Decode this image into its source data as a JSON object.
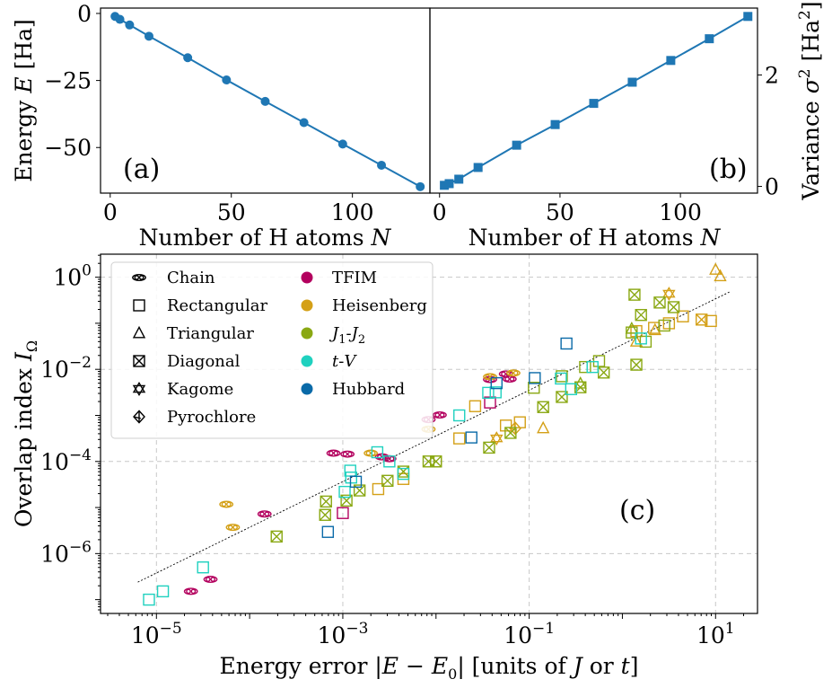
{
  "colors": {
    "line": "#1f77b4",
    "fit": "#000000",
    "TFIM": "#b3005e",
    "Heisenberg": "#d4a017",
    "J1-J2": "#8aa813",
    "t-V": "#1fd1bf",
    "Hubbard": "#0a6aa8",
    "legend_edge": "#cfcfcf"
  },
  "chart_data": [
    {
      "id": "a",
      "type": "line",
      "panel_label": "(a)",
      "xlabel": "Number of H atoms N",
      "ylabel": "Energy E [Ha]",
      "xlim": [
        -4,
        132
      ],
      "ylim": [
        -67,
        2
      ],
      "xticks": [
        "0",
        "50",
        "100"
      ],
      "xtick_values": [
        0,
        50,
        100
      ],
      "yticks": [
        "0",
        "−25",
        "−50"
      ],
      "ytick_values": [
        0,
        -25,
        -50
      ],
      "marker": "circle",
      "x": [
        2,
        4,
        8,
        16,
        32,
        48,
        64,
        80,
        96,
        112,
        128
      ],
      "y": [
        -1.1,
        -2.2,
        -4.3,
        -8.5,
        -16.5,
        -24.8,
        -32.8,
        -40.7,
        -48.7,
        -56.6,
        -64.6
      ]
    },
    {
      "id": "b",
      "type": "line",
      "panel_label": "(b)",
      "xlabel": "Number of H atoms N",
      "ylabel": "Variance σ² [Ha²]",
      "xlim": [
        -4,
        132
      ],
      "ylim": [
        -0.12,
        3.2
      ],
      "xticks": [
        "0",
        "50",
        "100"
      ],
      "xtick_values": [
        0,
        50,
        100
      ],
      "yticks": [
        "0",
        "2"
      ],
      "ytick_values": [
        0,
        2
      ],
      "marker": "square",
      "x": [
        2,
        4,
        8,
        16,
        32,
        48,
        64,
        80,
        96,
        112,
        128
      ],
      "y": [
        0.02,
        0.05,
        0.13,
        0.34,
        0.74,
        1.11,
        1.49,
        1.87,
        2.26,
        2.65,
        3.05
      ]
    },
    {
      "id": "c",
      "type": "scatter",
      "scale": "log-log",
      "panel_label": "(c)",
      "xlabel": "Energy error |E − E0| [units of J or t]",
      "ylabel": "Overlap index IΩ",
      "xlim_log10": [
        -5.6,
        1.45
      ],
      "ylim_log10": [
        -7.3,
        0.5
      ],
      "xticks": [
        "10−5",
        "10−3",
        "10−1",
        "101"
      ],
      "xtick_log10": [
        -5,
        -3,
        -1,
        1
      ],
      "yticks": [
        "100",
        "10−2",
        "10−4",
        "10−6"
      ],
      "ytick_log10": [
        0,
        -2,
        -4,
        -6
      ],
      "fit_log10": {
        "x": [
          -5.2,
          1.15
        ],
        "y": [
          -6.62,
          -0.32
        ]
      },
      "legend_shapes": [
        "Chain",
        "Rectangular",
        "Triangular",
        "Diagonal",
        "Kagome",
        "Pyrochlore"
      ],
      "legend_models": [
        "TFIM",
        "Heisenberg",
        "J1-J2",
        "t-V",
        "Hubbard"
      ],
      "series": [
        {
          "model": "TFIM",
          "shape": "Chain",
          "x": [
            -4.63,
            -4.42,
            -3.84,
            -3.1,
            -2.95,
            -2.58,
            -2.5,
            -2.08,
            -1.96,
            -1.42,
            -1.25,
            -1.21
          ],
          "y": [
            -6.82,
            -6.56,
            -5.14,
            -3.82,
            -3.84,
            -3.9,
            -3.94,
            -3.09,
            -2.99,
            -2.22,
            -2.1,
            -2.21
          ]
        },
        {
          "model": "TFIM",
          "shape": "Rectangular",
          "x": [
            -3.0,
            -1.42
          ],
          "y": [
            -5.12,
            -2.72
          ]
        },
        {
          "model": "Heisenberg",
          "shape": "Chain",
          "x": [
            -4.25,
            -4.18,
            -2.7,
            -2.08,
            -1.42,
            -1.17
          ],
          "y": [
            -4.93,
            -5.43,
            -3.82,
            -3.3,
            -2.16,
            -2.08
          ]
        },
        {
          "model": "Heisenberg",
          "shape": "Rectangular",
          "x": [
            -2.62,
            -2.35,
            -2.0,
            -1.75,
            -1.58,
            -1.25,
            -1.1,
            0.15,
            0.34,
            0.5,
            0.65,
            0.95
          ],
          "y": [
            -4.6,
            -4.38,
            -4.0,
            -3.5,
            -2.8,
            -3.22,
            -3.15,
            -1.17,
            -1.1,
            -1.0,
            -0.85,
            -0.95
          ]
        },
        {
          "model": "Heisenberg",
          "shape": "Triangular",
          "x": [
            1.0,
            1.05,
            0.35,
            0.15,
            -0.85
          ],
          "y": [
            0.16,
            0.02,
            -1.15,
            -1.4,
            -3.28
          ]
        },
        {
          "model": "Heisenberg",
          "shape": "Kagome",
          "x": [
            0.5,
            -1.35
          ],
          "y": [
            -0.36,
            -3.5
          ]
        },
        {
          "model": "Heisenberg",
          "shape": "Diagonal",
          "x": [
            0.85
          ],
          "y": [
            -0.92
          ]
        },
        {
          "model": "Heisenberg",
          "shape": "Pyrochlore",
          "x": [
            -1.15
          ],
          "y": [
            -3.28
          ]
        },
        {
          "model": "J1-J2",
          "shape": "Diagonal",
          "x": [
            -3.71,
            -3.19,
            -3.18,
            -2.96,
            -2.82,
            -2.52,
            -2.35,
            -2.08,
            -2.0,
            -1.43,
            -1.2,
            -0.85,
            -0.65,
            -0.45,
            -0.2,
            0.15,
            0.13,
            0.2,
            0.4,
            0.55
          ],
          "y": [
            -5.63,
            -5.16,
            -4.87,
            -4.85,
            -4.63,
            -4.42,
            -4.22,
            -4.0,
            -4.0,
            -3.7,
            -3.38,
            -2.82,
            -2.6,
            -2.39,
            -2.07,
            -1.9,
            -0.38,
            -0.82,
            -0.55,
            -0.65
          ]
        },
        {
          "model": "J1-J2",
          "shape": "Rectangular",
          "x": [
            -0.95,
            -0.65,
            -0.4,
            -0.25,
            0.1,
            0.25,
            0.45
          ],
          "y": [
            -2.4,
            -2.15,
            -1.95,
            -1.82,
            -1.2,
            -1.4,
            -1.05
          ]
        },
        {
          "model": "J1-J2",
          "shape": "Triangular",
          "x": [
            -0.45,
            0.1
          ],
          "y": [
            -2.31,
            -1.12
          ]
        },
        {
          "model": "t-V",
          "shape": "Rectangular",
          "x": [
            -5.08,
            -4.93,
            -4.5,
            -2.98,
            -2.92,
            -2.91,
            -2.63,
            -2.5,
            -2.35,
            -1.75,
            -1.44,
            -1.36,
            -0.66,
            -0.55,
            -0.32,
            0.2
          ],
          "y": [
            -7.0,
            -6.82,
            -6.3,
            -4.66,
            -4.2,
            -4.35,
            -3.8,
            -4.0,
            -4.27,
            -3.0,
            -2.51,
            -2.5,
            -2.2,
            -2.43,
            -1.95,
            -1.33
          ]
        },
        {
          "model": "Hubbard",
          "shape": "Rectangular",
          "x": [
            -3.16,
            -1.62,
            -2.86,
            -1.35,
            -0.94,
            -0.6
          ],
          "y": [
            -5.53,
            -3.48,
            -4.44,
            -2.3,
            -2.19,
            -1.44
          ]
        }
      ]
    }
  ],
  "labels": {
    "a_panel": "(a)",
    "b_panel": "(b)",
    "c_panel": "(c)",
    "a_xlabel": "Number of H atoms N",
    "a_ylabel": "Energy E [Ha]",
    "b_xlabel": "Number of H atoms N",
    "b_ylabel": "Variance σ² [Ha²]",
    "c_xlabel": "Energy error |E − E0| [units of J or t]",
    "c_ylabel": "Overlap index IΩ",
    "legend": {
      "Chain": "Chain",
      "Rectangular": "Rectangular",
      "Triangular": "Triangular",
      "Diagonal": "Diagonal",
      "Kagome": "Kagome",
      "Pyrochlore": "Pyrochlore",
      "TFIM": "TFIM",
      "Heisenberg": "Heisenberg",
      "J1-J2": "J1-J2",
      "t-V": "t-V",
      "Hubbard": "Hubbard"
    }
  }
}
